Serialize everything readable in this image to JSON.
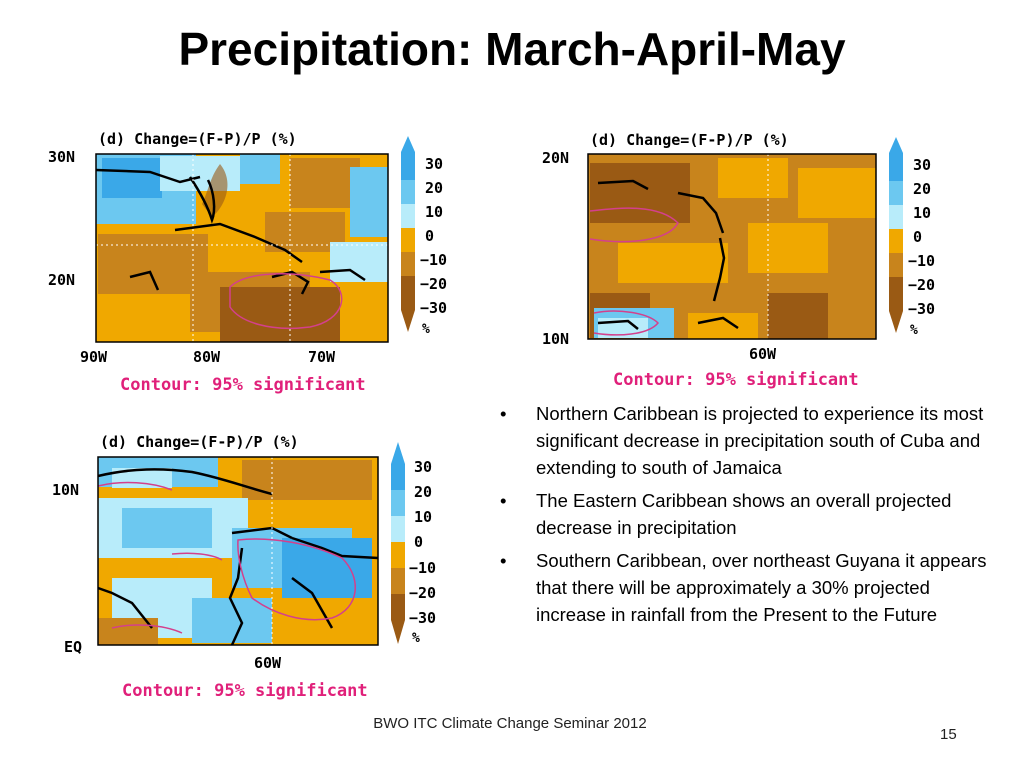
{
  "slide": {
    "title": "Precipitation: March-April-May",
    "footer": "BWO ITC Climate Change Seminar 2012",
    "page_number": "15"
  },
  "maps": [
    {
      "header": "(d) Change=(F-P)/P  (%)",
      "lat_labels": [
        "30N",
        "20N"
      ],
      "lon_labels": [
        "90W",
        "80W",
        "70W"
      ],
      "contour_note": "Contour: 95% significant",
      "colorbar_labels": [
        "30",
        "20",
        "10",
        "0",
        "−10",
        "−20",
        "−30",
        "%"
      ]
    },
    {
      "header": "(d) Change=(F-P)/P  (%)",
      "lat_labels": [
        "20N",
        "10N"
      ],
      "lon_labels": [
        "60W"
      ],
      "contour_note": "Contour: 95% significant",
      "colorbar_labels": [
        "30",
        "20",
        "10",
        "0",
        "−10",
        "−20",
        "−30",
        "%"
      ]
    },
    {
      "header": "(d) Change=(F-P)/P  (%)",
      "lat_labels": [
        "10N",
        "EQ"
      ],
      "lon_labels": [
        "60W"
      ],
      "contour_note": "Contour: 95% significant",
      "colorbar_labels": [
        "30",
        "20",
        "10",
        "0",
        "−10",
        "−20",
        "−30",
        "%"
      ]
    }
  ],
  "colors": {
    "pos3": "#3aa8e8",
    "pos2": "#6cc8f0",
    "pos1": "#b8ecfa",
    "neg1": "#f0a800",
    "neg2": "#c8841c",
    "neg3": "#9a5a14",
    "contour": "#d4408c",
    "note": "#e0207a"
  },
  "bullets": [
    "Northern Caribbean is projected to experience its most significant decrease in precipitation south of Cuba and extending to south of Jamaica",
    "The Eastern Caribbean shows an overall projected decrease in precipitation",
    "Southern Caribbean, over northeast Guyana it appears that there will be approximately a 30% projected increase in rainfall from the Present to the Future"
  ]
}
